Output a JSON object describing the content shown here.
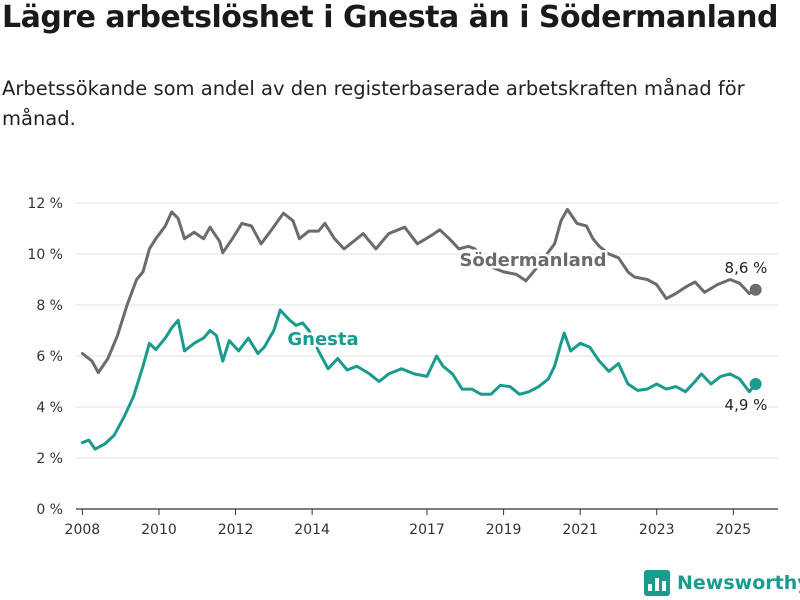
{
  "title": "Lägre arbetslöshet i Gnesta än i Södermanland",
  "subtitle": "Arbetssökande som andel av den registerbaserade arbetskraften månad för månad.",
  "brand": {
    "name": "Newsworthy",
    "icon": "newsworthy-logo-icon",
    "color": "#1a9b8e"
  },
  "chart_data": {
    "type": "line",
    "x_ticks": [
      "2008",
      "2010",
      "2012",
      "2014",
      "2017",
      "2019",
      "2021",
      "2023",
      "2025"
    ],
    "y_ticks": [
      "0 %",
      "2 %",
      "4 %",
      "6 %",
      "8 %",
      "10 %",
      "12 %"
    ],
    "ylim": [
      0,
      12
    ],
    "xlim": [
      "2007-11",
      "2026-03"
    ],
    "grid": "horizontal",
    "legend": "inline labels",
    "series": [
      {
        "name": "Södermanland",
        "color": "#6b6b6b",
        "end_label": "8,6 %",
        "points": [
          [
            "2008-01",
            6.1
          ],
          [
            "2008-04",
            5.8
          ],
          [
            "2008-06",
            5.35
          ],
          [
            "2008-09",
            5.9
          ],
          [
            "2008-12",
            6.8
          ],
          [
            "2009-03",
            8.0
          ],
          [
            "2009-06",
            9.0
          ],
          [
            "2009-08",
            9.3
          ],
          [
            "2009-10",
            10.2
          ],
          [
            "2009-12",
            10.6
          ],
          [
            "2010-03",
            11.1
          ],
          [
            "2010-05",
            11.65
          ],
          [
            "2010-07",
            11.4
          ],
          [
            "2010-09",
            10.6
          ],
          [
            "2010-12",
            10.85
          ],
          [
            "2011-03",
            10.6
          ],
          [
            "2011-05",
            11.05
          ],
          [
            "2011-08",
            10.5
          ],
          [
            "2011-09",
            10.05
          ],
          [
            "2011-12",
            10.6
          ],
          [
            "2012-03",
            11.2
          ],
          [
            "2012-06",
            11.1
          ],
          [
            "2012-09",
            10.4
          ],
          [
            "2012-12",
            10.9
          ],
          [
            "2013-04",
            11.6
          ],
          [
            "2013-07",
            11.3
          ],
          [
            "2013-09",
            10.6
          ],
          [
            "2013-12",
            10.9
          ],
          [
            "2014-03",
            10.9
          ],
          [
            "2014-05",
            11.2
          ],
          [
            "2014-08",
            10.6
          ],
          [
            "2014-11",
            10.2
          ],
          [
            "2015-02",
            10.5
          ],
          [
            "2015-05",
            10.8
          ],
          [
            "2015-09",
            10.2
          ],
          [
            "2016-01",
            10.8
          ],
          [
            "2016-06",
            11.05
          ],
          [
            "2016-10",
            10.4
          ],
          [
            "2017-02",
            10.7
          ],
          [
            "2017-05",
            10.95
          ],
          [
            "2017-08",
            10.6
          ],
          [
            "2017-11",
            10.2
          ],
          [
            "2018-02",
            10.3
          ],
          [
            "2018-04",
            10.2
          ],
          [
            "2018-09",
            9.5
          ],
          [
            "2019-01",
            9.3
          ],
          [
            "2019-05",
            9.2
          ],
          [
            "2019-08",
            8.95
          ],
          [
            "2019-11",
            9.4
          ],
          [
            "2020-02",
            9.9
          ],
          [
            "2020-05",
            10.4
          ],
          [
            "2020-07",
            11.3
          ],
          [
            "2020-09",
            11.75
          ],
          [
            "2020-12",
            11.2
          ],
          [
            "2021-03",
            11.1
          ],
          [
            "2021-05",
            10.6
          ],
          [
            "2021-07",
            10.3
          ],
          [
            "2021-10",
            10.0
          ],
          [
            "2022-01",
            9.85
          ],
          [
            "2022-04",
            9.3
          ],
          [
            "2022-06",
            9.1
          ],
          [
            "2022-10",
            9.0
          ],
          [
            "2023-01",
            8.8
          ],
          [
            "2023-04",
            8.25
          ],
          [
            "2023-07",
            8.45
          ],
          [
            "2023-10",
            8.7
          ],
          [
            "2024-01",
            8.9
          ],
          [
            "2024-04",
            8.5
          ],
          [
            "2024-08",
            8.8
          ],
          [
            "2024-12",
            9.0
          ],
          [
            "2025-03",
            8.85
          ],
          [
            "2025-06",
            8.45
          ],
          [
            "2025-08",
            8.6
          ]
        ]
      },
      {
        "name": "Gnesta",
        "color": "#1a9b8e",
        "end_label": "4,9 %",
        "points": [
          [
            "2008-01",
            2.6
          ],
          [
            "2008-03",
            2.7
          ],
          [
            "2008-05",
            2.35
          ],
          [
            "2008-08",
            2.55
          ],
          [
            "2008-11",
            2.9
          ],
          [
            "2009-02",
            3.6
          ],
          [
            "2009-05",
            4.4
          ],
          [
            "2009-08",
            5.6
          ],
          [
            "2009-10",
            6.5
          ],
          [
            "2009-12",
            6.25
          ],
          [
            "2010-03",
            6.7
          ],
          [
            "2010-05",
            7.1
          ],
          [
            "2010-07",
            7.4
          ],
          [
            "2010-09",
            6.2
          ],
          [
            "2010-12",
            6.5
          ],
          [
            "2011-03",
            6.7
          ],
          [
            "2011-05",
            7.0
          ],
          [
            "2011-07",
            6.8
          ],
          [
            "2011-09",
            5.8
          ],
          [
            "2011-11",
            6.6
          ],
          [
            "2012-02",
            6.2
          ],
          [
            "2012-05",
            6.7
          ],
          [
            "2012-08",
            6.1
          ],
          [
            "2012-10",
            6.35
          ],
          [
            "2013-01",
            7.0
          ],
          [
            "2013-03",
            7.8
          ],
          [
            "2013-06",
            7.4
          ],
          [
            "2013-08",
            7.2
          ],
          [
            "2013-10",
            7.3
          ],
          [
            "2013-12",
            7.0
          ],
          [
            "2014-03",
            6.2
          ],
          [
            "2014-06",
            5.5
          ],
          [
            "2014-09",
            5.9
          ],
          [
            "2014-12",
            5.45
          ],
          [
            "2015-03",
            5.6
          ],
          [
            "2015-07",
            5.3
          ],
          [
            "2015-10",
            5.0
          ],
          [
            "2016-01",
            5.3
          ],
          [
            "2016-05",
            5.5
          ],
          [
            "2016-09",
            5.3
          ],
          [
            "2017-01",
            5.2
          ],
          [
            "2017-04",
            6.0
          ],
          [
            "2017-06",
            5.6
          ],
          [
            "2017-09",
            5.3
          ],
          [
            "2017-12",
            4.7
          ],
          [
            "2018-03",
            4.7
          ],
          [
            "2018-06",
            4.5
          ],
          [
            "2018-09",
            4.5
          ],
          [
            "2018-12",
            4.85
          ],
          [
            "2019-03",
            4.8
          ],
          [
            "2019-06",
            4.5
          ],
          [
            "2019-09",
            4.6
          ],
          [
            "2019-12",
            4.8
          ],
          [
            "2020-03",
            5.1
          ],
          [
            "2020-05",
            5.6
          ],
          [
            "2020-07",
            6.5
          ],
          [
            "2020-08",
            6.9
          ],
          [
            "2020-10",
            6.2
          ],
          [
            "2021-01",
            6.5
          ],
          [
            "2021-04",
            6.35
          ],
          [
            "2021-07",
            5.8
          ],
          [
            "2021-10",
            5.4
          ],
          [
            "2022-01",
            5.7
          ],
          [
            "2022-04",
            4.9
          ],
          [
            "2022-07",
            4.65
          ],
          [
            "2022-10",
            4.7
          ],
          [
            "2023-01",
            4.9
          ],
          [
            "2023-04",
            4.7
          ],
          [
            "2023-07",
            4.8
          ],
          [
            "2023-10",
            4.6
          ],
          [
            "2024-01",
            5.0
          ],
          [
            "2024-03",
            5.3
          ],
          [
            "2024-06",
            4.9
          ],
          [
            "2024-09",
            5.2
          ],
          [
            "2024-12",
            5.3
          ],
          [
            "2025-03",
            5.1
          ],
          [
            "2025-06",
            4.6
          ],
          [
            "2025-08",
            4.9
          ]
        ]
      }
    ]
  }
}
